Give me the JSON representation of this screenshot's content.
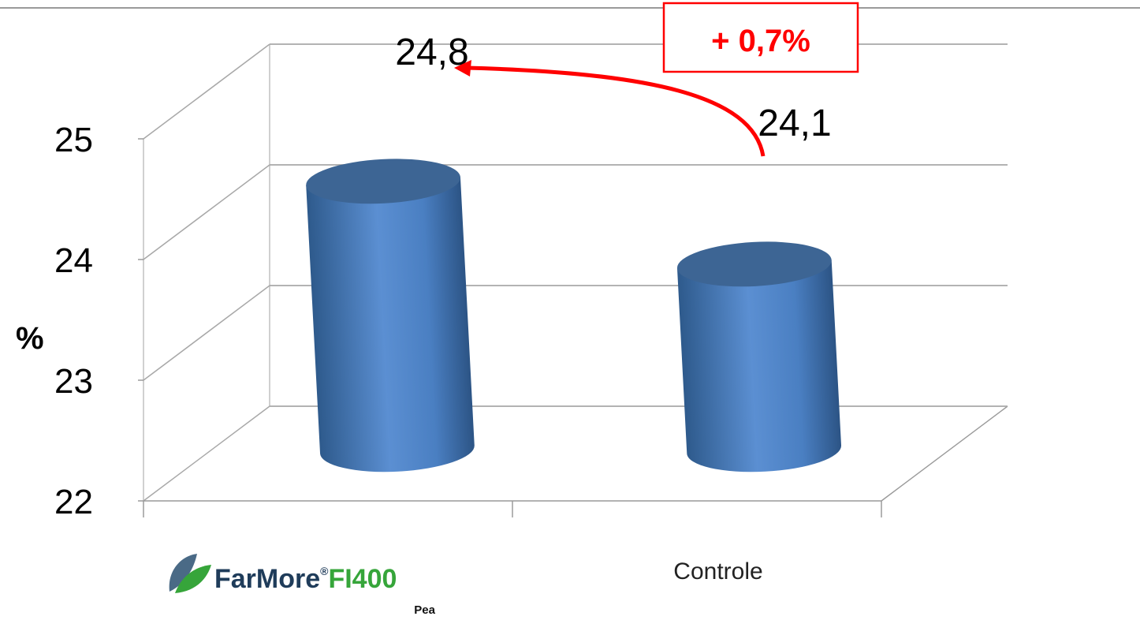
{
  "chart_data": {
    "type": "bar",
    "categories": [
      "FarMore FI400 Pea",
      "Controle"
    ],
    "values": [
      24.8,
      24.1
    ],
    "value_labels": [
      "24,8",
      "24,1"
    ],
    "ylabel": "%",
    "ylim": [
      22,
      25
    ],
    "yticks": [
      "22",
      "23",
      "24",
      "25"
    ],
    "grid": true,
    "legend": "none",
    "bar_color": "#4F81BD",
    "annotation": {
      "text": "+ 0,7%",
      "color": "#ff0000"
    }
  },
  "logo": {
    "word1": "FarMore",
    "mark": "®",
    "word2": "FI400",
    "sub": "Pea",
    "color_dark": "#1f3c5a",
    "color_green": "#36a53a"
  },
  "category_label_2": "Controle"
}
